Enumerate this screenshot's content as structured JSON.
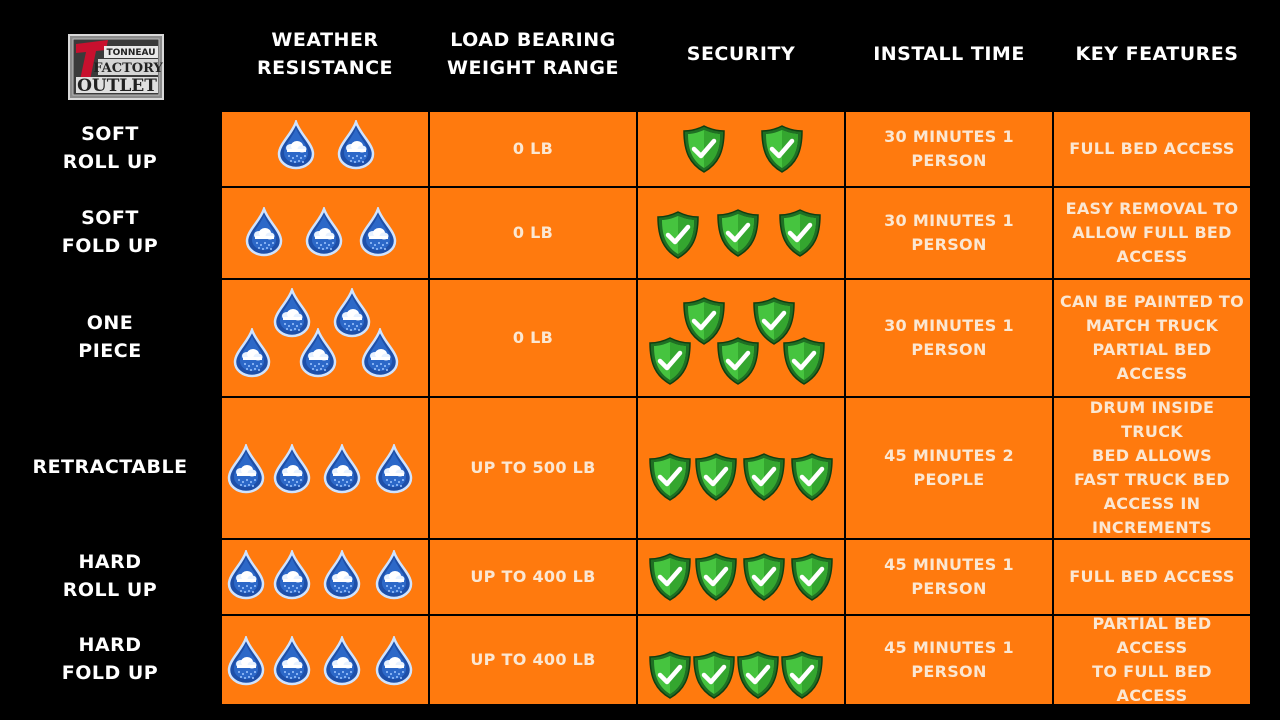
{
  "logo": {
    "line1": "TONNEAU",
    "line2": "FACTORY",
    "line3": "OUTLET",
    "mark": "T"
  },
  "headers": [
    "WEATHER\nRESISTANCE",
    "LOAD BEARING\nWEIGHT RANGE",
    "SECURITY",
    "INSTALL TIME",
    "KEY FEATURES"
  ],
  "icon_names": {
    "weather": "water-drop-icon",
    "security": "shield-check-icon"
  },
  "colors": {
    "background": "#000000",
    "cell": "#ff7a0e",
    "cell_text": "#fbe7d2",
    "drop": "#1e4fa8",
    "shield": "#3db83a"
  },
  "rows": [
    {
      "label": "SOFT\nROLL UP",
      "weather": 2,
      "load": "0 LB",
      "security": 2,
      "install": "30 MINUTES 1\nPERSON",
      "features": "FULL BED ACCESS"
    },
    {
      "label": "SOFT\nFOLD UP",
      "weather": 3,
      "load": "0 LB",
      "security": 3,
      "install": "30 MINUTES 1\nPERSON",
      "features": "EASY REMOVAL TO\nALLOW FULL BED\nACCESS"
    },
    {
      "label": "ONE\nPIECE",
      "weather": 5,
      "load": "0 LB",
      "security": 5,
      "install": "30 MINUTES 1\nPERSON",
      "features": "CAN BE PAINTED TO\nMATCH TRUCK\nPARTIAL BED\nACCESS"
    },
    {
      "label": "RETRACTABLE",
      "weather": 4,
      "load": "UP TO 500 LB",
      "security": 4,
      "install": "45 MINUTES 2 PEOPLE",
      "features": "DRUM INSIDE TRUCK\nBED ALLOWS\nFAST TRUCK BED\nACCESS IN\nINCREMENTS"
    },
    {
      "label": "HARD\nROLL UP",
      "weather": 4,
      "load": "UP TO 400 LB",
      "security": 4,
      "install": "45 MINUTES 1 PERSON",
      "features": "FULL BED ACCESS"
    },
    {
      "label": "HARD\nFOLD UP",
      "weather": 4,
      "load": "UP TO 400 LB",
      "security": 4,
      "install": "45 MINUTES 1 PERSON",
      "features": "PARTIAL BED ACCESS\nTO FULL BED\nACCESS"
    }
  ]
}
